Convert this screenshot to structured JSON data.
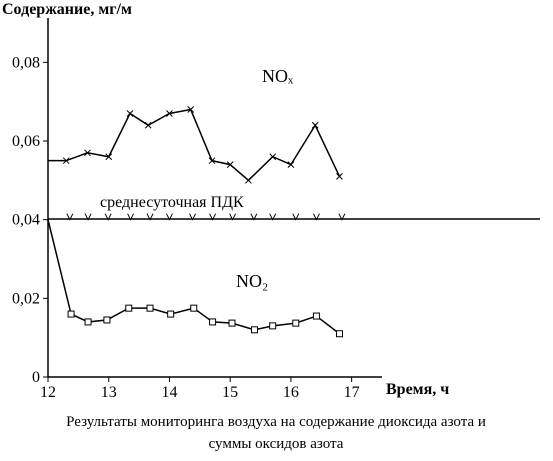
{
  "chart_data": {
    "type": "line",
    "y_label": "Содержание, мг/м",
    "x_label": "Время, ч",
    "caption": [
      "Результаты мониторинга воздуха на содержание диоксида азота и",
      "суммы оксидов азота"
    ],
    "xlim": [
      12,
      17.5
    ],
    "xticks": [
      12,
      13,
      14,
      15,
      16,
      17
    ],
    "ylim": [
      0,
      0.09
    ],
    "yticks": [
      0,
      {
        "value": 0.02,
        "label": "0,02"
      },
      {
        "value": 0.04,
        "label": "0,04"
      },
      {
        "value": 0.06,
        "label": "0,06"
      },
      {
        "value": 0.08,
        "label": "0,08"
      }
    ],
    "series": [
      {
        "name": "NOₓ",
        "color": "#000000",
        "marker": "x",
        "x": [
          12,
          12.3,
          12.65,
          13,
          13.35,
          13.65,
          14,
          14.35,
          14.7,
          15,
          15.3,
          15.7,
          16,
          16.4,
          16.8
        ],
        "values": [
          0.055,
          0.055,
          0.057,
          0.056,
          0.067,
          0.064,
          0.067,
          0.068,
          0.055,
          0.054,
          0.05,
          0.056,
          0.054,
          0.064,
          0.051
        ]
      },
      {
        "name": "NO₂",
        "color": "#000000",
        "marker": "square",
        "x": [
          12,
          12.38,
          12.66,
          12.97,
          13.33,
          13.68,
          14.02,
          14.4,
          14.71,
          15.03,
          15.4,
          15.7,
          16.08,
          16.42,
          16.8
        ],
        "values": [
          0.04,
          0.016,
          0.014,
          0.0145,
          0.0175,
          0.0175,
          0.016,
          0.0175,
          0.014,
          0.0137,
          0.012,
          0.013,
          0.0137,
          0.0155,
          0.011
        ]
      },
      {
        "name": "среднесуточная ПДК",
        "color": "#000000",
        "marker": "v",
        "x": [
          12.36,
          12.66,
          12.99,
          13.36,
          13.68,
          14.0,
          14.38,
          14.71,
          15.04,
          15.39,
          15.7,
          16.08,
          16.42,
          16.84
        ],
        "values": [
          0.04,
          0.04,
          0.04,
          0.04,
          0.04,
          0.04,
          0.04,
          0.04,
          0.04,
          0.04,
          0.04,
          0.04,
          0.04,
          0.04
        ]
      }
    ]
  }
}
